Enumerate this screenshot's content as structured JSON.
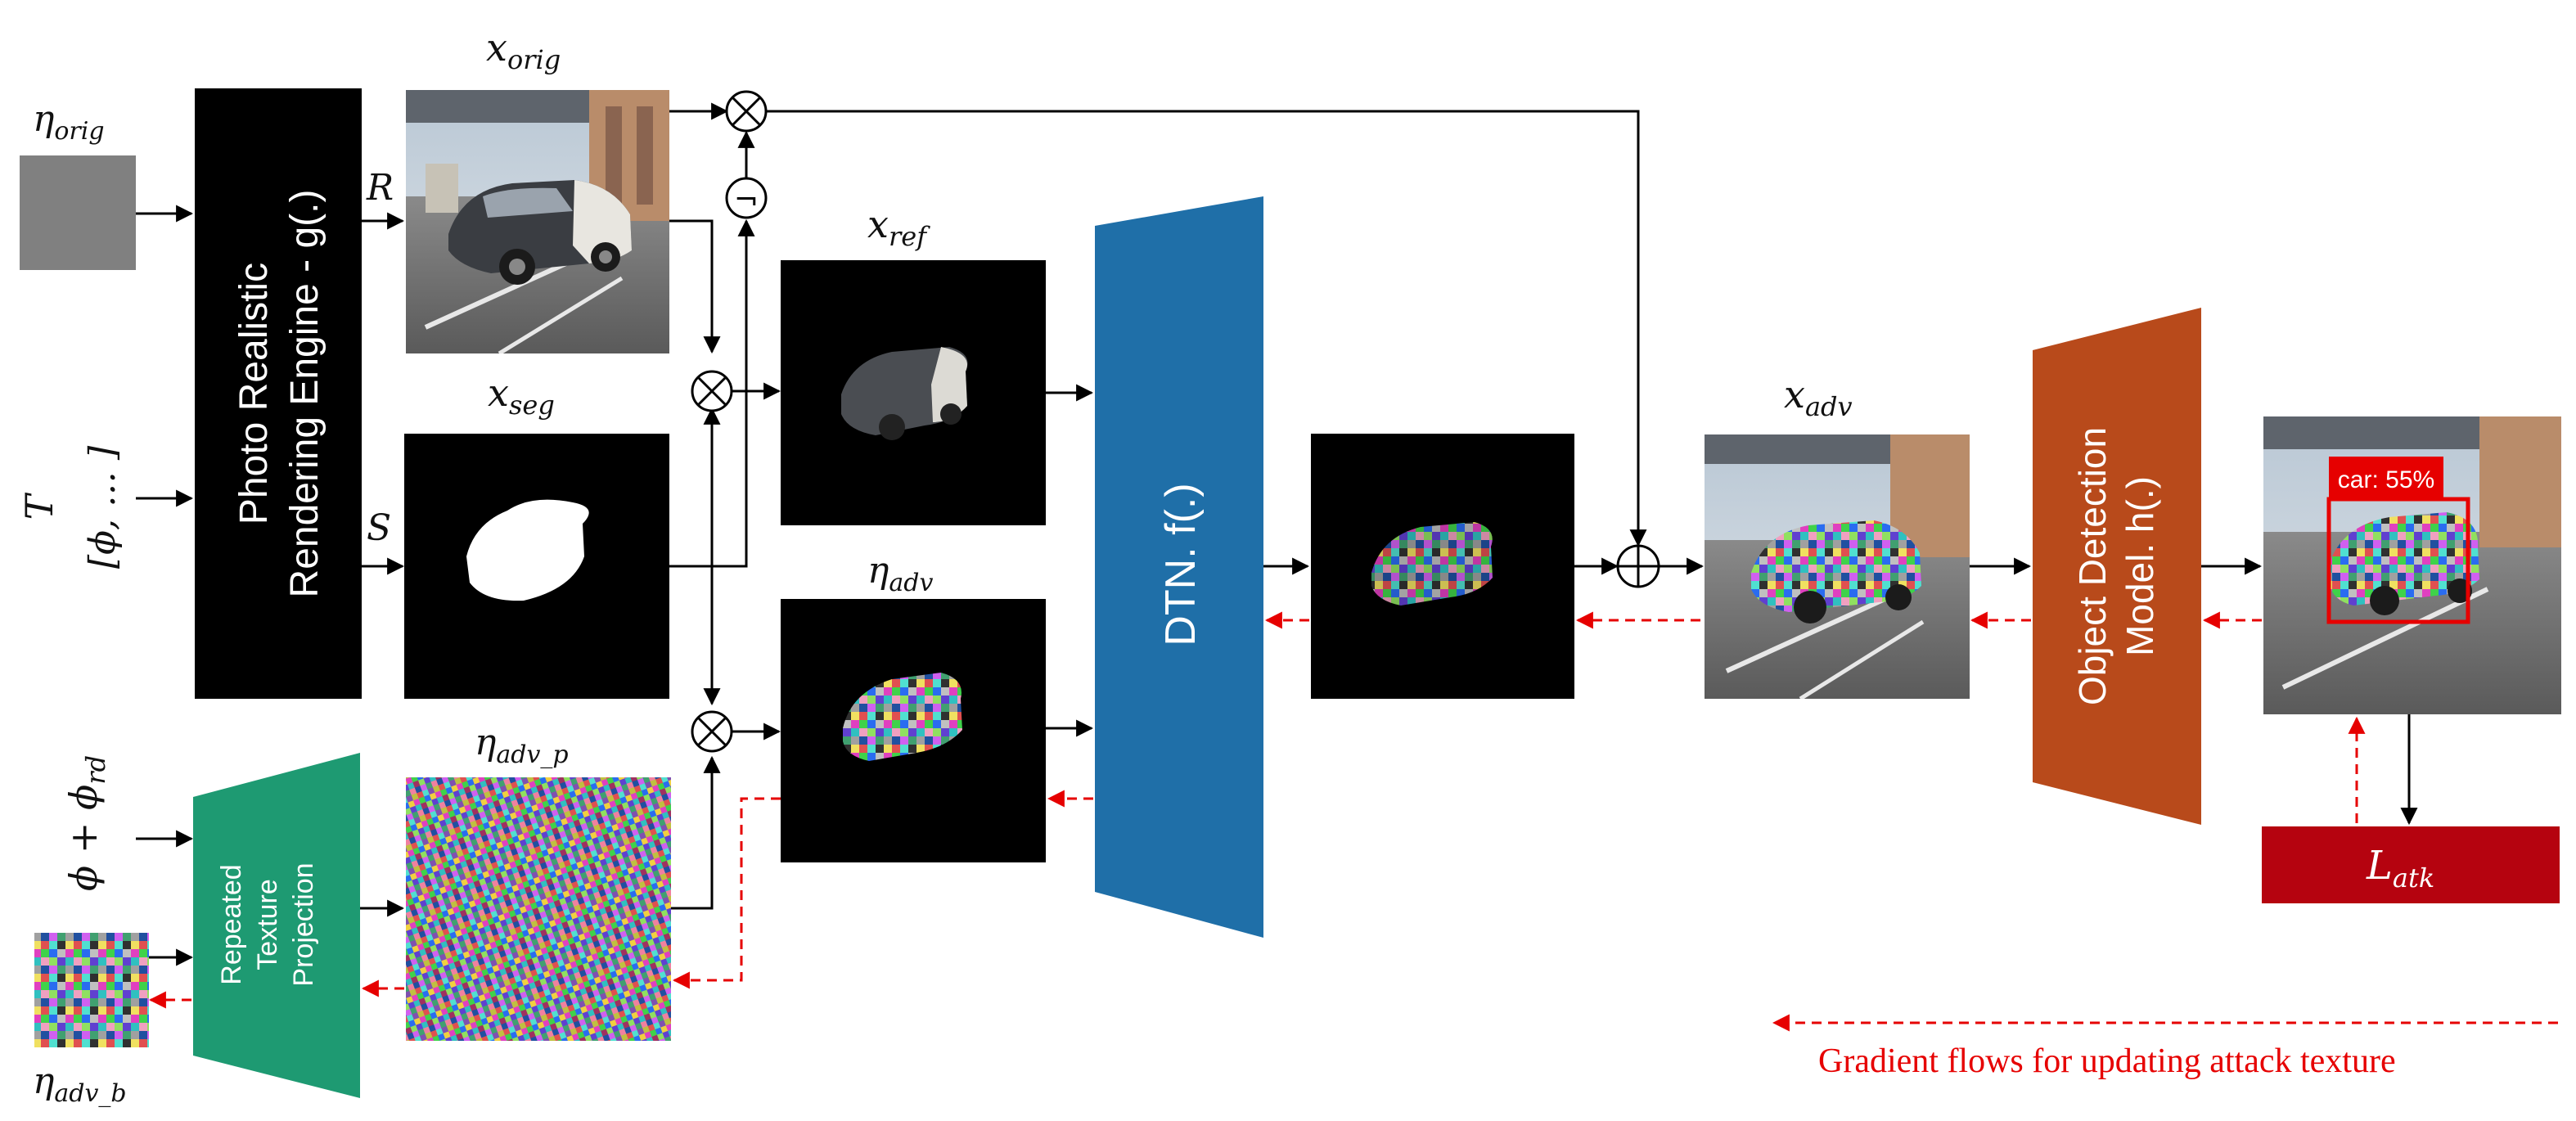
{
  "labels": {
    "eta_orig": {
      "base": "η",
      "sub": "orig"
    },
    "T": "T",
    "phi_set": "[ϕ, … ]",
    "phi_rd": {
      "a": "ϕ + ϕ",
      "sub": "rd"
    },
    "eta_adv_b": {
      "base": "η",
      "sub": "adv_b"
    },
    "x_orig": {
      "base": "x",
      "sub": "orig"
    },
    "x_seg": {
      "base": "x",
      "sub": "seg"
    },
    "eta_adv_p": {
      "base": "η",
      "sub": "adv_p"
    },
    "x_ref": {
      "base": "x",
      "sub": "ref"
    },
    "eta_adv": {
      "base": "η",
      "sub": "adv"
    },
    "x_adv": {
      "base": "x",
      "sub": "adv"
    },
    "R": "R",
    "S": "S"
  },
  "blocks": {
    "renderer_line1": "Photo Realistic",
    "renderer_line2": "Rendering Engine - g(.)",
    "dtn": "DTN. f(.)",
    "detector_line1": "Object Detection",
    "detector_line2": "Model. h(.)",
    "projection_line1": "Repeated",
    "projection_line2": "Texture",
    "projection_line3": "Projection"
  },
  "loss": {
    "base": "L",
    "sub": "atk"
  },
  "detection_label": "car: 55%",
  "operators": {
    "multiply": "⊗",
    "add": "⊕",
    "negate": "¬"
  },
  "legend": "Gradient flows for updating attack texture",
  "colors": {
    "renderer": "#000000",
    "dtn": "#1f6fa8",
    "detector": "#b84a1b",
    "projection": "#1e9a72",
    "loss": "#b5030f",
    "gradient": "#e60000",
    "gray_texture": "#808080"
  },
  "icons": [
    "car-render-image",
    "segmentation-mask-image",
    "camouflage-texture-image",
    "detection-box"
  ]
}
